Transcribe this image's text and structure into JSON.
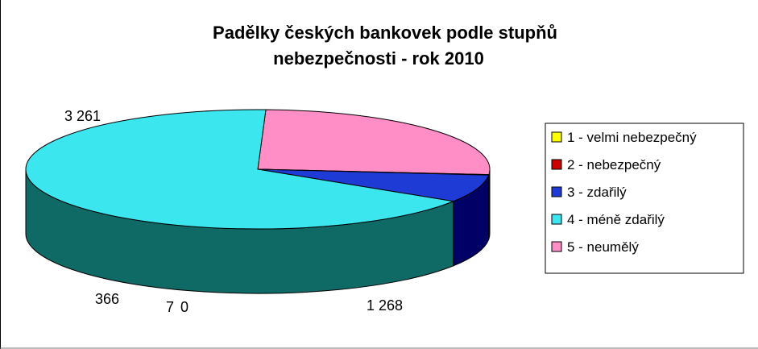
{
  "chart_data": {
    "type": "pie",
    "title_line1": "Padělky českých bankovek podle stupňů",
    "title_line2": "nebezpečnosti - rok 2010",
    "series": [
      {
        "name": "1 - velmi nebezpečný",
        "value": 0,
        "label": "0",
        "color": "#ffff00",
        "side": "#808000"
      },
      {
        "name": "2 - nebezpečný",
        "value": 7,
        "label": "7",
        "color": "#cc0000",
        "side": "#660000"
      },
      {
        "name": "3 - zdařilý",
        "value": 366,
        "label": "366",
        "color": "#1f3bd6",
        "side": "#000066"
      },
      {
        "name": "4 - méně zdařilý",
        "value": 3261,
        "label": "3 261",
        "color": "#3ce6ee",
        "side": "#0f6a66"
      },
      {
        "name": "5 - neumělý",
        "value": 1268,
        "label": "1 268",
        "color": "#ff8ec6",
        "side": "#632440"
      }
    ],
    "legend_position": "right",
    "style": "3d-pie"
  }
}
